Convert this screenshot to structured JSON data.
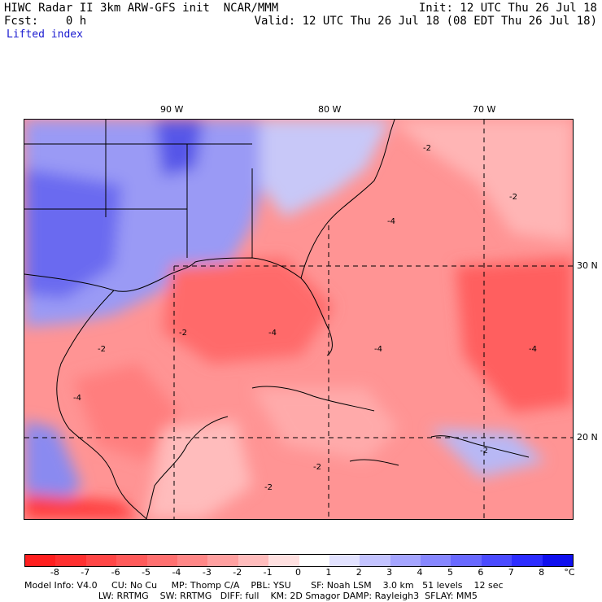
{
  "header": {
    "line1_left": "HIWC Radar II 3km ARW-GFS init  NCAR/MMM",
    "line1_right": "Init: 12 UTC Thu 26 Jul 18",
    "line2_left": "Fcst:    0 h",
    "line2_right": "Valid: 12 UTC Thu 26 Jul 18 (08 EDT Thu 26 Jul 18)",
    "field": "Lifted index"
  },
  "axes": {
    "lon_labels": [
      "90 W",
      "80 W",
      "70 W"
    ],
    "lat_labels": [
      "30 N",
      "20 N"
    ]
  },
  "contour_label": "-2",
  "contour_label_b": "-4",
  "colorbar": {
    "ticks": [
      "-8",
      "-7",
      "-6",
      "-5",
      "-4",
      "-3",
      "-2",
      "-1",
      "0",
      "1",
      "2",
      "3",
      "4",
      "5",
      "6",
      "7",
      "8"
    ],
    "unit": "°C",
    "colors": [
      "#ff1f1f",
      "#ff3030",
      "#ff4646",
      "#ff5a5a",
      "#ff7070",
      "#ff8787",
      "#ffa0a0",
      "#ffbcbc",
      "#ffe0e0",
      "#ffffff",
      "#e2e2ff",
      "#c3c3ff",
      "#a5a5ff",
      "#8787ff",
      "#6969ff",
      "#4b4bff",
      "#2d2dff",
      "#1010ee"
    ]
  },
  "footer": {
    "line1": "Model Info: V4.0     CU: No Cu     MP: Thomp C/A    PBL: YSU       SF: Noah LSM    3.0 km   51 levels    12 sec",
    "line2": "                          LW: RRTMG    SW: RRTMG   DIFF: full    KM: 2D Smagor DAMP: Rayleigh3  SFLAY: MM5"
  }
}
